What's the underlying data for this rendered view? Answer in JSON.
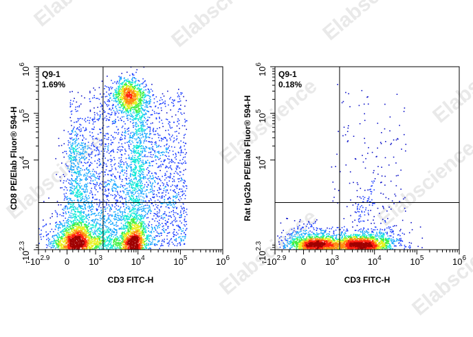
{
  "watermark": "Elabscience",
  "colors": {
    "density": [
      "#0a10c8",
      "#1a3cff",
      "#18a8ff",
      "#10e8d8",
      "#40f040",
      "#e8f020",
      "#ff8c10",
      "#ff2010",
      "#a00000"
    ],
    "gate_line": "#000000",
    "axes": "#000000"
  },
  "chart_data": [
    {
      "type": "scatter",
      "subtype": "flow-cytometry-density-dotplot",
      "title": "",
      "xlabel": "CD3 FITC-H",
      "ylabel": "CD8 PE/Elab Fluor® 594-H",
      "x_scale": "biexponential",
      "y_scale": "biexponential",
      "xlim": [
        -794,
        1000000
      ],
      "ylim": [
        -200,
        1000000
      ],
      "x_ticks": [
        {
          "value": -794,
          "base": "-10",
          "exp": "2.9"
        },
        {
          "value": 0,
          "base": "0",
          "exp": ""
        },
        {
          "value": 1000,
          "base": "10",
          "exp": "3"
        },
        {
          "value": 10000,
          "base": "10",
          "exp": "4"
        },
        {
          "value": 100000,
          "base": "10",
          "exp": "5"
        },
        {
          "value": 1000000,
          "base": "10",
          "exp": "6"
        }
      ],
      "y_ticks": [
        {
          "value": -200,
          "base": "-10",
          "exp": "2.3"
        },
        {
          "value": 10000,
          "base": "10",
          "exp": "4"
        },
        {
          "value": 100000,
          "base": "10",
          "exp": "5"
        },
        {
          "value": 1000000,
          "base": "10",
          "exp": "6"
        }
      ],
      "quadrant_gate": {
        "x": 1500,
        "y": 5000
      },
      "quadrant_label": "Q9-1",
      "quadrant_percent": "1.69%",
      "populations": [
        {
          "x_center": 250,
          "y_center": 50,
          "relative_density": "high"
        },
        {
          "x_center": 8000,
          "y_center": 80,
          "relative_density": "high"
        },
        {
          "x_center": 6000,
          "y_center": 250000,
          "relative_density": "high"
        }
      ]
    },
    {
      "type": "scatter",
      "subtype": "flow-cytometry-density-dotplot",
      "title": "",
      "xlabel": "CD3 FITC-H",
      "ylabel": "Rat IgG2b PE/Elab Fluor® 594-H",
      "x_scale": "biexponential",
      "y_scale": "biexponential",
      "xlim": [
        -794,
        1000000
      ],
      "ylim": [
        -200,
        1000000
      ],
      "x_ticks": [
        {
          "value": -794,
          "base": "-10",
          "exp": "2.9"
        },
        {
          "value": 0,
          "base": "0",
          "exp": ""
        },
        {
          "value": 1000,
          "base": "10",
          "exp": "3"
        },
        {
          "value": 10000,
          "base": "10",
          "exp": "4"
        },
        {
          "value": 100000,
          "base": "10",
          "exp": "5"
        },
        {
          "value": 1000000,
          "base": "10",
          "exp": "6"
        }
      ],
      "y_ticks": [
        {
          "value": -200,
          "base": "-10",
          "exp": "2.3"
        },
        {
          "value": 10000,
          "base": "10",
          "exp": "4"
        },
        {
          "value": 100000,
          "base": "10",
          "exp": "5"
        },
        {
          "value": 1000000,
          "base": "10",
          "exp": "6"
        }
      ],
      "quadrant_gate": {
        "x": 1500,
        "y": 5000
      },
      "quadrant_label": "Q9-1",
      "quadrant_percent": "0.18%",
      "populations": [
        {
          "x_center": 250,
          "y_center": 60,
          "relative_density": "high"
        },
        {
          "x_center": 6000,
          "y_center": 60,
          "relative_density": "high"
        }
      ]
    }
  ]
}
